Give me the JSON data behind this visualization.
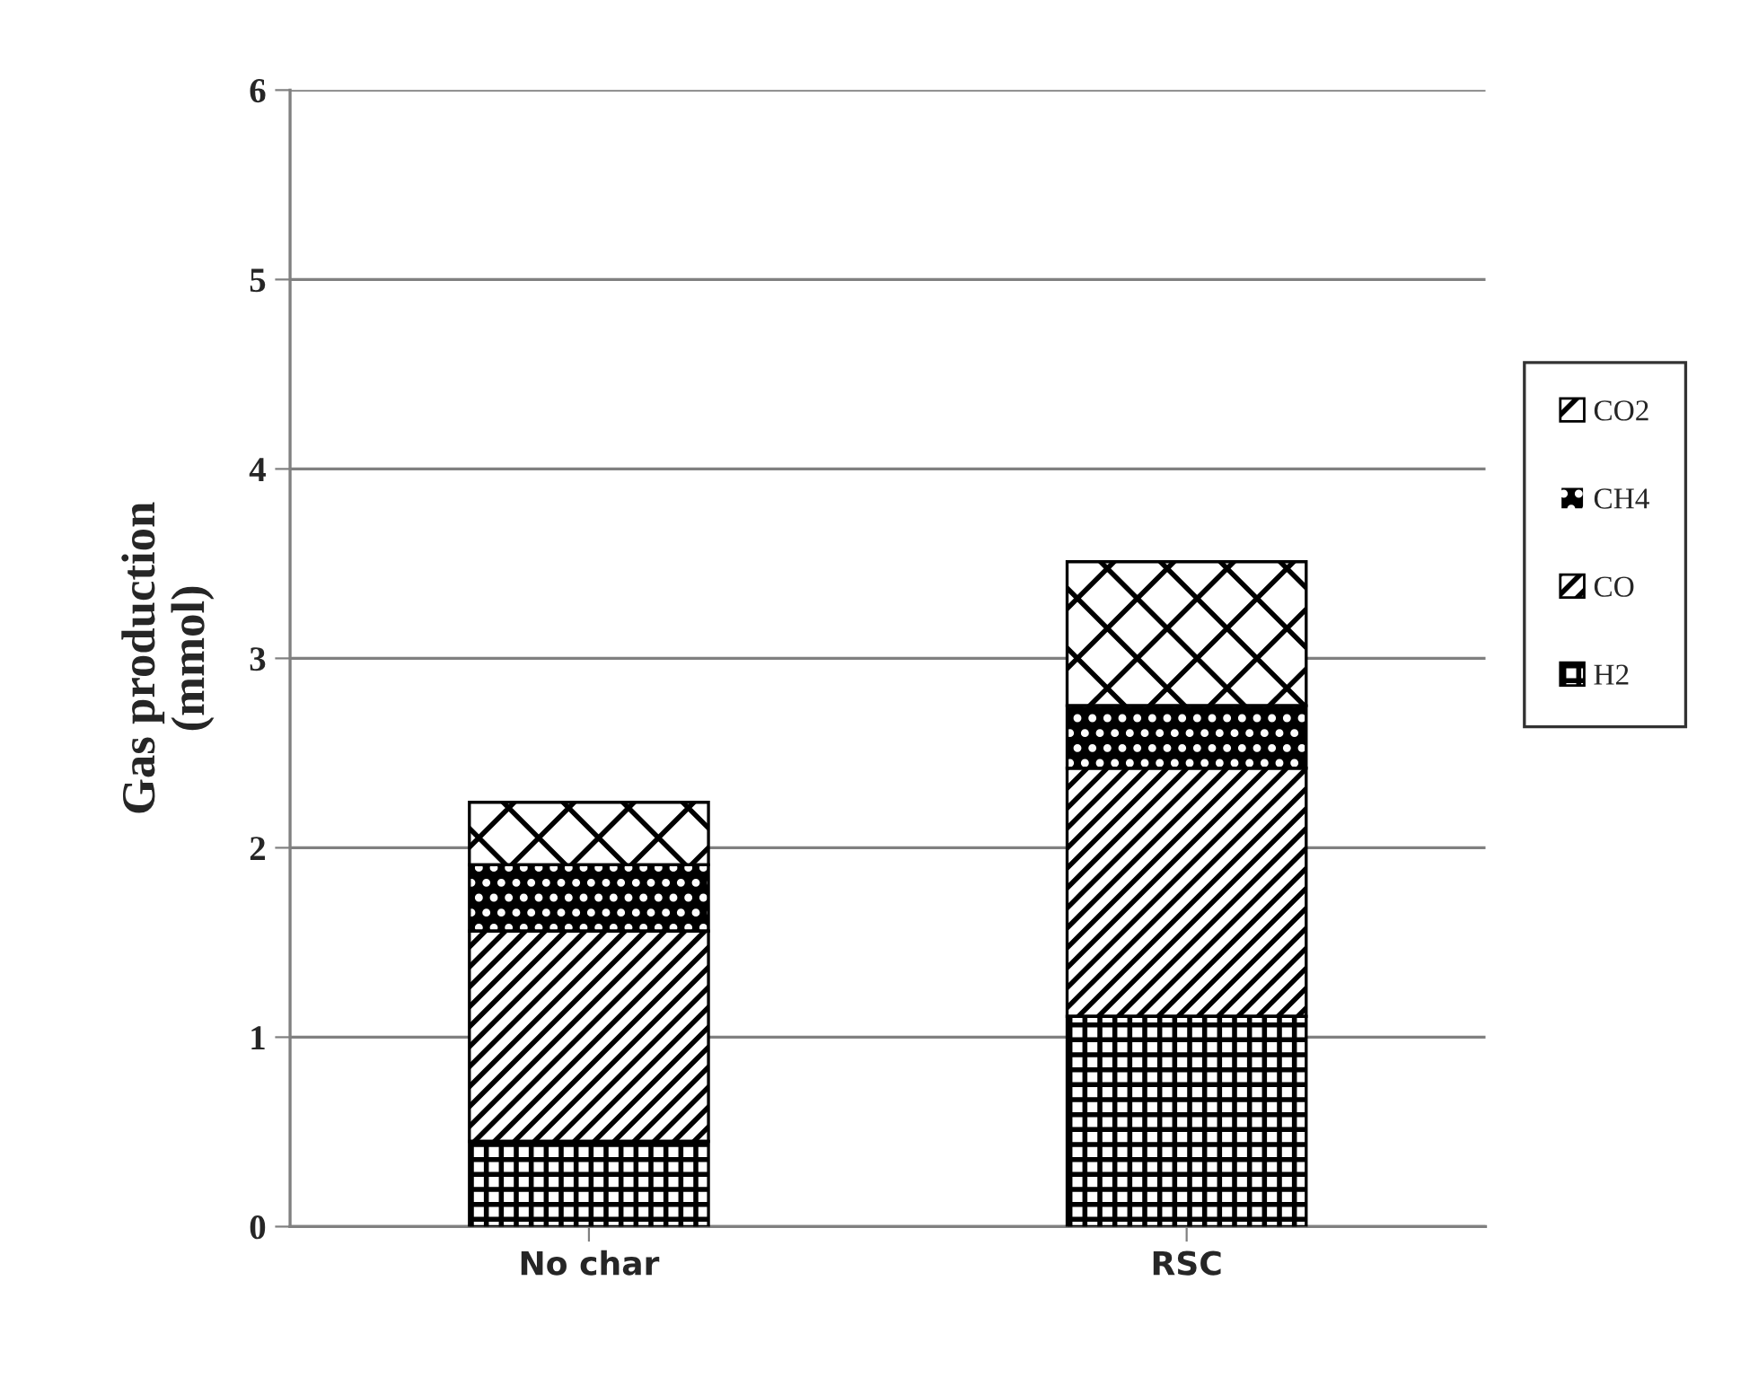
{
  "chart_data": {
    "type": "bar",
    "stacked": true,
    "ylabel": "Gas production\n(mmol)",
    "categories": [
      "No char",
      "RSC"
    ],
    "series": [
      {
        "name": "H2",
        "color": "#ffffff",
        "values": [
          0.45,
          1.11
        ]
      },
      {
        "name": "CO",
        "color": "#ffffff",
        "values": [
          1.11,
          1.31
        ]
      },
      {
        "name": "CH4",
        "color": "#000000",
        "values": [
          0.35,
          0.33
        ]
      },
      {
        "name": "CO2",
        "color": "#ffffff",
        "values": [
          0.33,
          0.76
        ]
      }
    ],
    "ylim": [
      0,
      6
    ],
    "yticks": [
      0,
      1,
      2,
      3,
      4,
      5,
      6
    ],
    "grid": "y",
    "legend": "right"
  }
}
